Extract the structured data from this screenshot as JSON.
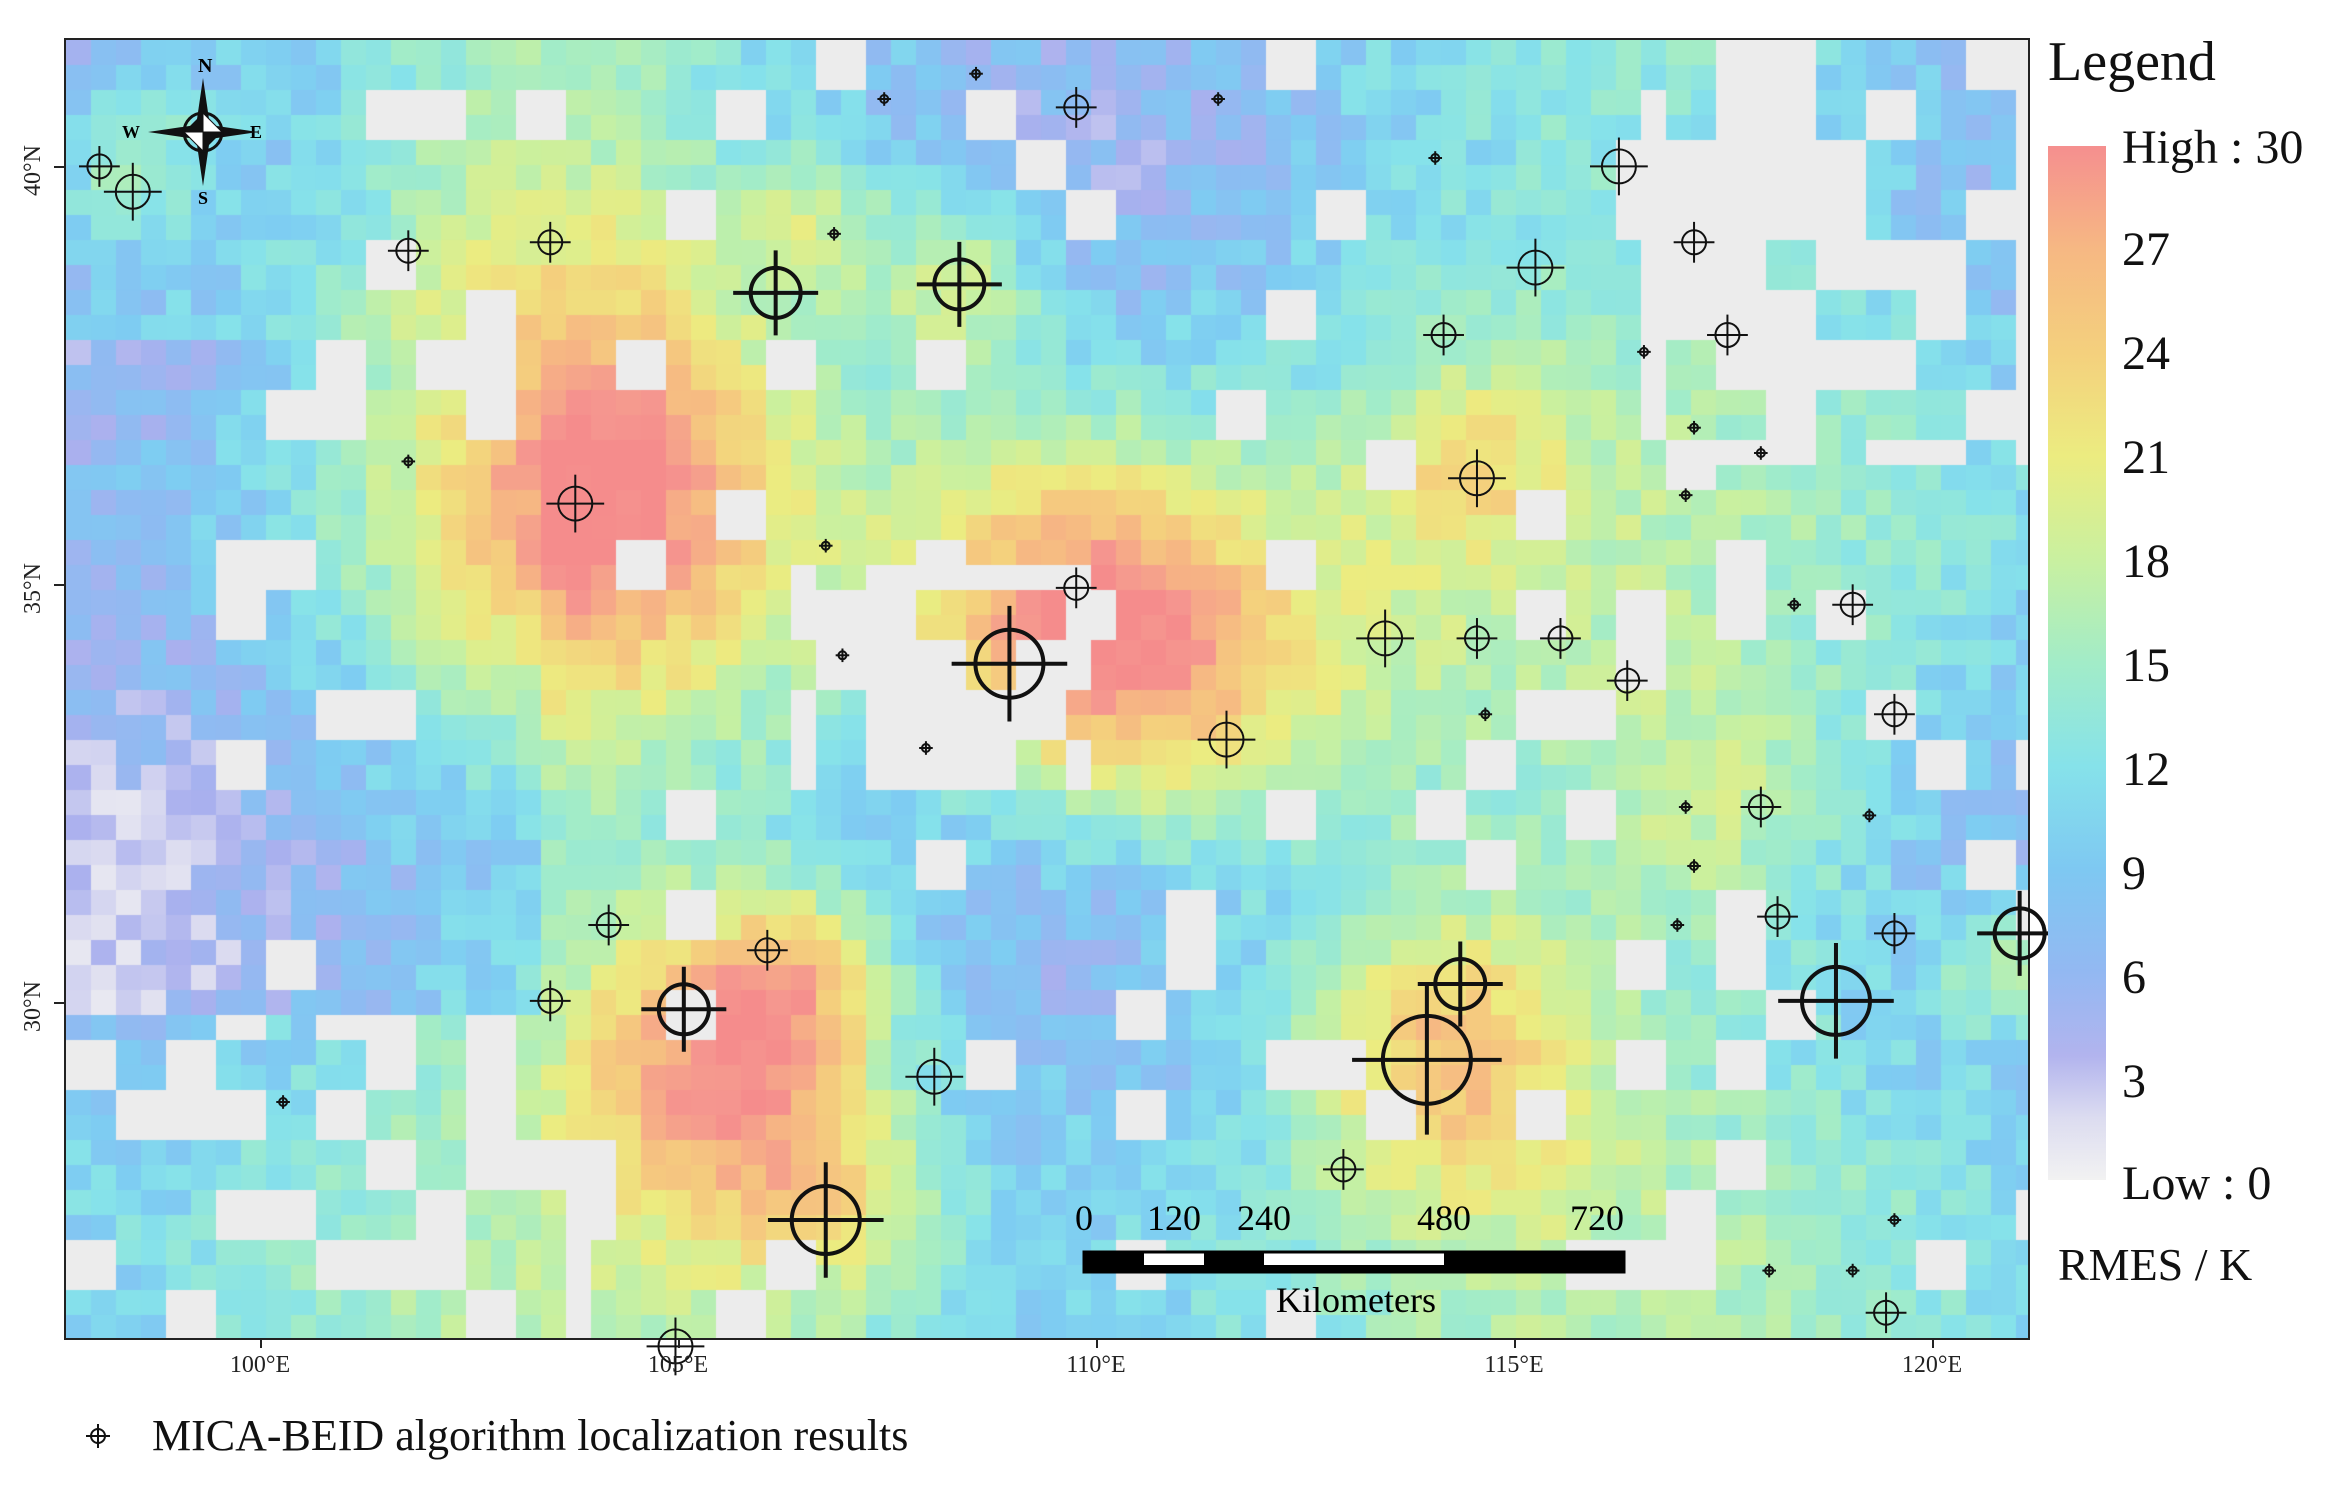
{
  "compass": {
    "north": "N",
    "south": "S",
    "east": "E",
    "west": "W"
  },
  "axes": {
    "x_ticks": [
      "100°E",
      "105°E",
      "110°E",
      "115°E",
      "120°E"
    ],
    "y_ticks": [
      "40°N",
      "35°N",
      "30°N"
    ]
  },
  "legend": {
    "title": "Legend",
    "high_label": "High : 30",
    "low_label": "Low : 0",
    "ticks": [
      "27",
      "24",
      "21",
      "18",
      "15",
      "12",
      "9",
      "6",
      "3"
    ],
    "unit": "RMES / K",
    "range": [
      0,
      30
    ],
    "colors": [
      "#f58f8f",
      "#f6b883",
      "#f4d07d",
      "#ecec80",
      "#c9f0a0",
      "#a2ecc8",
      "#86e2ea",
      "#7ec8f2",
      "#93b8f2",
      "#dcdcf0",
      "#f2f2f2"
    ]
  },
  "scale_bar": {
    "labels": [
      "0",
      "120",
      "240",
      "480",
      "720"
    ],
    "unit": "Kilometers"
  },
  "markers_legend": {
    "label": "MICA-BEID algorithm localization results",
    "icon": "crosshair-icon"
  },
  "map_extent": {
    "lon": [
      97.7,
      121.2
    ],
    "lat": [
      26.2,
      41.6
    ]
  },
  "localization_results": [
    {
      "lon": 98.1,
      "lat": 40.1,
      "size": 1
    },
    {
      "lon": 98.5,
      "lat": 39.8,
      "size": 2
    },
    {
      "lon": 101.8,
      "lat": 39.1,
      "size": 1
    },
    {
      "lon": 103.5,
      "lat": 39.2,
      "size": 1
    },
    {
      "lon": 106.2,
      "lat": 38.6,
      "size": 3
    },
    {
      "lon": 106.9,
      "lat": 39.3,
      "size": 0
    },
    {
      "lon": 108.4,
      "lat": 38.7,
      "size": 3
    },
    {
      "lon": 109.8,
      "lat": 40.8,
      "size": 1
    },
    {
      "lon": 108.6,
      "lat": 41.2,
      "size": 0
    },
    {
      "lon": 107.5,
      "lat": 40.9,
      "size": 0
    },
    {
      "lon": 111.5,
      "lat": 40.9,
      "size": 0
    },
    {
      "lon": 114.1,
      "lat": 40.2,
      "size": 0
    },
    {
      "lon": 116.3,
      "lat": 40.1,
      "size": 2
    },
    {
      "lon": 117.2,
      "lat": 39.2,
      "size": 1
    },
    {
      "lon": 115.3,
      "lat": 38.9,
      "size": 2
    },
    {
      "lon": 114.2,
      "lat": 38.1,
      "size": 1
    },
    {
      "lon": 117.6,
      "lat": 38.1,
      "size": 1
    },
    {
      "lon": 116.6,
      "lat": 37.9,
      "size": 0
    },
    {
      "lon": 114.6,
      "lat": 36.4,
      "size": 2
    },
    {
      "lon": 117.2,
      "lat": 37.0,
      "size": 0
    },
    {
      "lon": 117.1,
      "lat": 36.2,
      "size": 0
    },
    {
      "lon": 118.0,
      "lat": 36.7,
      "size": 0
    },
    {
      "lon": 103.8,
      "lat": 36.1,
      "size": 2
    },
    {
      "lon": 109.8,
      "lat": 35.1,
      "size": 1
    },
    {
      "lon": 109.0,
      "lat": 34.2,
      "size": 4
    },
    {
      "lon": 107.0,
      "lat": 34.3,
      "size": 0
    },
    {
      "lon": 106.8,
      "lat": 35.6,
      "size": 0
    },
    {
      "lon": 111.6,
      "lat": 33.3,
      "size": 2
    },
    {
      "lon": 113.5,
      "lat": 34.5,
      "size": 2
    },
    {
      "lon": 114.6,
      "lat": 34.5,
      "size": 1
    },
    {
      "lon": 115.6,
      "lat": 34.5,
      "size": 1
    },
    {
      "lon": 116.4,
      "lat": 34.0,
      "size": 1
    },
    {
      "lon": 114.7,
      "lat": 33.6,
      "size": 0
    },
    {
      "lon": 118.4,
      "lat": 34.9,
      "size": 0
    },
    {
      "lon": 119.1,
      "lat": 34.9,
      "size": 1
    },
    {
      "lon": 119.6,
      "lat": 33.6,
      "size": 1
    },
    {
      "lon": 117.1,
      "lat": 32.5,
      "size": 0
    },
    {
      "lon": 118.0,
      "lat": 32.5,
      "size": 1
    },
    {
      "lon": 119.3,
      "lat": 32.4,
      "size": 0
    },
    {
      "lon": 117.2,
      "lat": 31.8,
      "size": 0
    },
    {
      "lon": 117.0,
      "lat": 31.1,
      "size": 0
    },
    {
      "lon": 118.2,
      "lat": 31.2,
      "size": 1
    },
    {
      "lon": 119.6,
      "lat": 31.0,
      "size": 1
    },
    {
      "lon": 121.1,
      "lat": 31.0,
      "size": 3
    },
    {
      "lon": 104.2,
      "lat": 31.1,
      "size": 1
    },
    {
      "lon": 106.1,
      "lat": 30.8,
      "size": 1
    },
    {
      "lon": 103.5,
      "lat": 30.2,
      "size": 1
    },
    {
      "lon": 105.1,
      "lat": 30.1,
      "size": 3
    },
    {
      "lon": 108.1,
      "lat": 29.3,
      "size": 2
    },
    {
      "lon": 114.4,
      "lat": 30.4,
      "size": 3
    },
    {
      "lon": 114.0,
      "lat": 29.5,
      "size": 5
    },
    {
      "lon": 118.9,
      "lat": 30.2,
      "size": 4
    },
    {
      "lon": 113.0,
      "lat": 28.2,
      "size": 1
    },
    {
      "lon": 119.6,
      "lat": 27.6,
      "size": 0
    },
    {
      "lon": 106.8,
      "lat": 27.6,
      "size": 4
    },
    {
      "lon": 100.3,
      "lat": 29.0,
      "size": 0
    },
    {
      "lon": 105.0,
      "lat": 26.1,
      "size": 2
    },
    {
      "lon": 118.1,
      "lat": 27.0,
      "size": 0
    },
    {
      "lon": 119.1,
      "lat": 27.0,
      "size": 0
    },
    {
      "lon": 119.5,
      "lat": 26.5,
      "size": 1
    },
    {
      "lon": 108.0,
      "lat": 33.2,
      "size": 0
    },
    {
      "lon": 101.8,
      "lat": 36.6,
      "size": 0
    }
  ]
}
